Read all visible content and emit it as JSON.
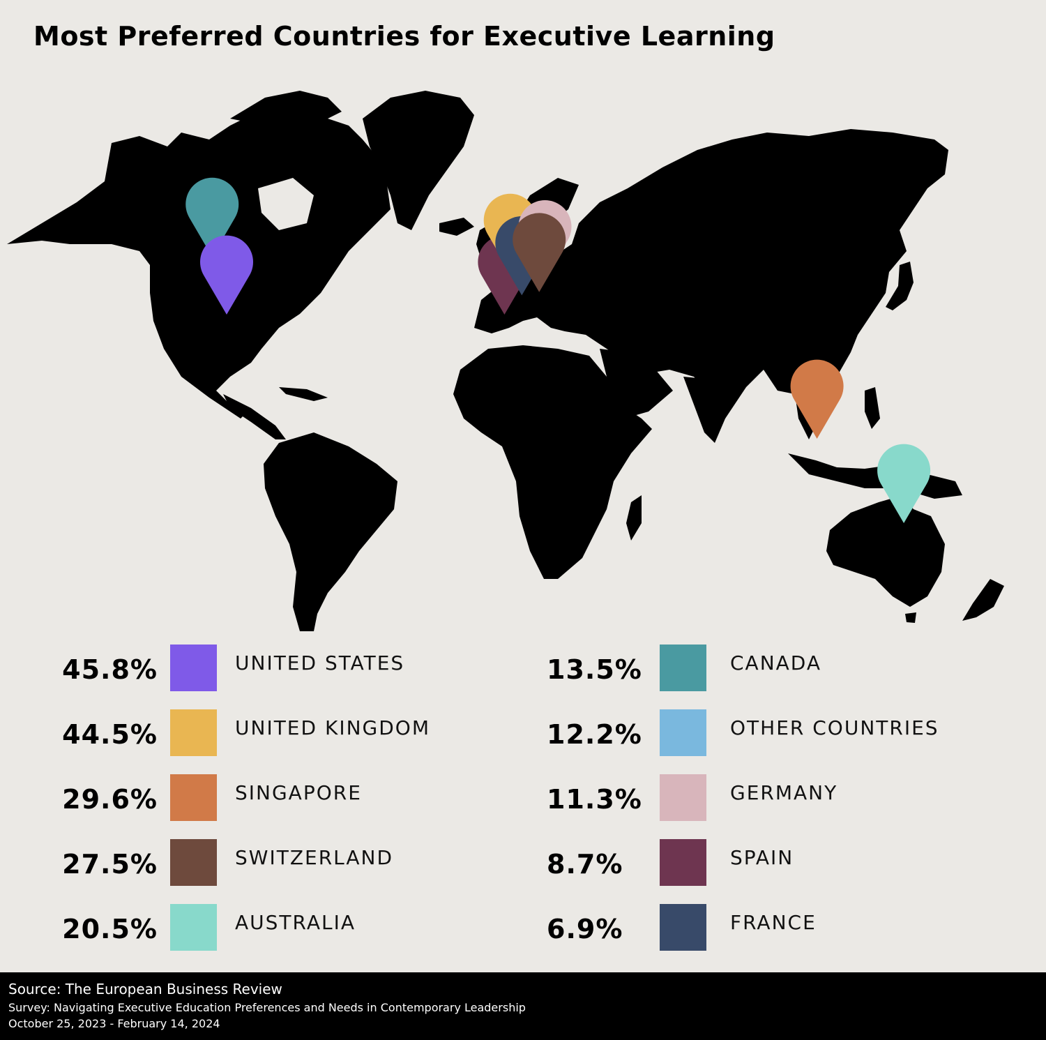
{
  "title": "Most Preferred Countries for Executive Learning",
  "colors": {
    "background": "#ebe9e5",
    "land": "#000000",
    "footer_bg": "#000000"
  },
  "markers": [
    {
      "country": "CANADA",
      "color": "#4a9aa1",
      "lon": -105,
      "lat": 58
    },
    {
      "country": "UNITED STATES",
      "color": "#7f5ae8",
      "lon": -100,
      "lat": 40
    },
    {
      "country": "SPAIN",
      "color": "#6e3550",
      "lon": -4,
      "lat": 40
    },
    {
      "country": "UNITED KINGDOM",
      "color": "#e9b652",
      "lon": -2,
      "lat": 53
    },
    {
      "country": "FRANCE",
      "color": "#384a69",
      "lon": 2,
      "lat": 46
    },
    {
      "country": "GERMANY",
      "color": "#d8b5bb",
      "lon": 10,
      "lat": 51
    },
    {
      "country": "SWITZERLAND",
      "color": "#6e4a3d",
      "lon": 8,
      "lat": 47
    },
    {
      "country": "SINGAPORE",
      "color": "#d17a48",
      "lon": 104,
      "lat": 1.3
    },
    {
      "country": "AUSTRALIA",
      "color": "#88d9cb",
      "lon": 134,
      "lat": -25
    }
  ],
  "legend": {
    "left": [
      {
        "pct": "45.8%",
        "label": "UNITED STATES",
        "color": "#7f5ae8"
      },
      {
        "pct": "44.5%",
        "label": "UNITED KINGDOM",
        "color": "#e9b652"
      },
      {
        "pct": "29.6%",
        "label": "SINGAPORE",
        "color": "#d17a48"
      },
      {
        "pct": "27.5%",
        "label": "SWITZERLAND",
        "color": "#6e4a3d"
      },
      {
        "pct": "20.5%",
        "label": "AUSTRALIA",
        "color": "#88d9cb"
      }
    ],
    "right": [
      {
        "pct": "13.5%",
        "label": "CANADA",
        "color": "#4a9aa1"
      },
      {
        "pct": "12.2%",
        "label": "OTHER COUNTRIES",
        "color": "#7ab8de"
      },
      {
        "pct": "11.3%",
        "label": "GERMANY",
        "color": "#d8b5bb"
      },
      {
        "pct": "8.7%",
        "label": "SPAIN",
        "color": "#6e3550"
      },
      {
        "pct": "6.9%",
        "label": "FRANCE",
        "color": "#384a69"
      }
    ]
  },
  "footer": {
    "source": "Source: The European Business Review",
    "survey": "Survey: Navigating Executive Education Preferences and Needs in Contemporary Leadership",
    "dates": "October 25, 2023 - February 14, 2024"
  }
}
